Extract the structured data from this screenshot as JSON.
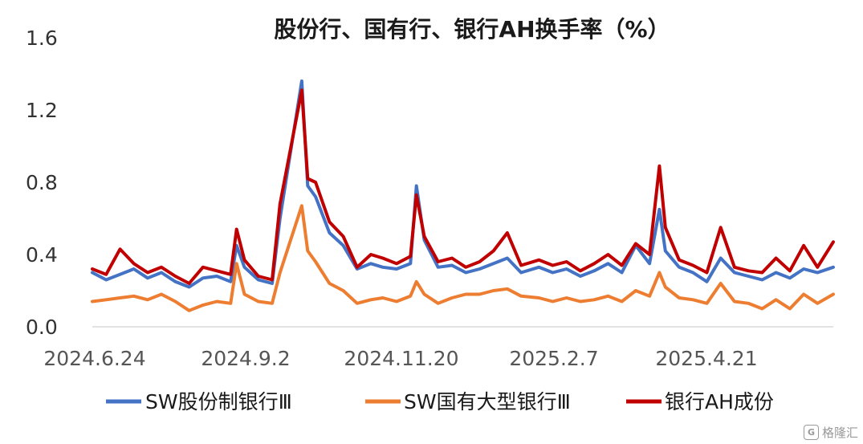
{
  "chart_data": {
    "type": "line",
    "title": "股份行、国有行、银行AH换手率（%）",
    "xlabel": "",
    "ylabel": "",
    "ylim": [
      0,
      1.6
    ],
    "yticks": [
      "0.0",
      "0.4",
      "0.8",
      "1.2",
      "1.6"
    ],
    "xticks": [
      "2024.6.24",
      "2024.9.2",
      "2024.11.20",
      "2025.2.7",
      "2025.4.21"
    ],
    "x_range": [
      "2024-06-24",
      "2025-07-04"
    ],
    "grid": false,
    "legend_position": "bottom",
    "series": [
      {
        "name": "SW股份制银行Ⅲ",
        "color": "#4472C4",
        "points": [
          [
            "2024-06-24",
            0.3
          ],
          [
            "2024-07-01",
            0.26
          ],
          [
            "2024-07-08",
            0.29
          ],
          [
            "2024-07-15",
            0.32
          ],
          [
            "2024-07-22",
            0.27
          ],
          [
            "2024-07-29",
            0.3
          ],
          [
            "2024-08-05",
            0.25
          ],
          [
            "2024-08-12",
            0.22
          ],
          [
            "2024-08-19",
            0.27
          ],
          [
            "2024-08-26",
            0.28
          ],
          [
            "2024-09-02",
            0.25
          ],
          [
            "2024-09-05",
            0.45
          ],
          [
            "2024-09-09",
            0.33
          ],
          [
            "2024-09-16",
            0.26
          ],
          [
            "2024-09-23",
            0.24
          ],
          [
            "2024-09-27",
            0.6
          ],
          [
            "2024-10-08",
            1.36
          ],
          [
            "2024-10-11",
            0.78
          ],
          [
            "2024-10-15",
            0.72
          ],
          [
            "2024-10-22",
            0.52
          ],
          [
            "2024-10-29",
            0.45
          ],
          [
            "2024-11-05",
            0.32
          ],
          [
            "2024-11-12",
            0.35
          ],
          [
            "2024-11-18",
            0.33
          ],
          [
            "2024-11-25",
            0.32
          ],
          [
            "2024-12-02",
            0.35
          ],
          [
            "2024-12-05",
            0.78
          ],
          [
            "2024-12-09",
            0.48
          ],
          [
            "2024-12-16",
            0.33
          ],
          [
            "2024-12-23",
            0.34
          ],
          [
            "2024-12-30",
            0.3
          ],
          [
            "2025-01-06",
            0.32
          ],
          [
            "2025-01-13",
            0.35
          ],
          [
            "2025-01-20",
            0.38
          ],
          [
            "2025-01-27",
            0.3
          ],
          [
            "2025-02-05",
            0.33
          ],
          [
            "2025-02-12",
            0.3
          ],
          [
            "2025-02-19",
            0.32
          ],
          [
            "2025-02-26",
            0.28
          ],
          [
            "2025-03-05",
            0.31
          ],
          [
            "2025-03-12",
            0.35
          ],
          [
            "2025-03-19",
            0.3
          ],
          [
            "2025-03-26",
            0.45
          ],
          [
            "2025-04-02",
            0.35
          ],
          [
            "2025-04-07",
            0.65
          ],
          [
            "2025-04-10",
            0.42
          ],
          [
            "2025-04-17",
            0.33
          ],
          [
            "2025-04-24",
            0.3
          ],
          [
            "2025-05-01",
            0.25
          ],
          [
            "2025-05-08",
            0.38
          ],
          [
            "2025-05-15",
            0.3
          ],
          [
            "2025-05-22",
            0.28
          ],
          [
            "2025-05-29",
            0.26
          ],
          [
            "2025-06-05",
            0.3
          ],
          [
            "2025-06-12",
            0.27
          ],
          [
            "2025-06-19",
            0.32
          ],
          [
            "2025-06-26",
            0.3
          ],
          [
            "2025-07-04",
            0.33
          ]
        ]
      },
      {
        "name": "SW国有大型银行Ⅲ",
        "color": "#ED7D31",
        "points": [
          [
            "2024-06-24",
            0.14
          ],
          [
            "2024-07-01",
            0.15
          ],
          [
            "2024-07-08",
            0.16
          ],
          [
            "2024-07-15",
            0.17
          ],
          [
            "2024-07-22",
            0.15
          ],
          [
            "2024-07-29",
            0.18
          ],
          [
            "2024-08-05",
            0.14
          ],
          [
            "2024-08-12",
            0.09
          ],
          [
            "2024-08-19",
            0.12
          ],
          [
            "2024-08-26",
            0.14
          ],
          [
            "2024-09-02",
            0.13
          ],
          [
            "2024-09-05",
            0.35
          ],
          [
            "2024-09-09",
            0.18
          ],
          [
            "2024-09-16",
            0.14
          ],
          [
            "2024-09-23",
            0.13
          ],
          [
            "2024-09-27",
            0.3
          ],
          [
            "2024-10-08",
            0.67
          ],
          [
            "2024-10-11",
            0.42
          ],
          [
            "2024-10-15",
            0.36
          ],
          [
            "2024-10-22",
            0.24
          ],
          [
            "2024-10-29",
            0.2
          ],
          [
            "2024-11-05",
            0.13
          ],
          [
            "2024-11-12",
            0.15
          ],
          [
            "2024-11-18",
            0.16
          ],
          [
            "2024-11-25",
            0.14
          ],
          [
            "2024-12-02",
            0.17
          ],
          [
            "2024-12-05",
            0.25
          ],
          [
            "2024-12-09",
            0.18
          ],
          [
            "2024-12-16",
            0.13
          ],
          [
            "2024-12-23",
            0.16
          ],
          [
            "2024-12-30",
            0.18
          ],
          [
            "2025-01-06",
            0.18
          ],
          [
            "2025-01-13",
            0.2
          ],
          [
            "2025-01-20",
            0.21
          ],
          [
            "2025-01-27",
            0.17
          ],
          [
            "2025-02-05",
            0.16
          ],
          [
            "2025-02-12",
            0.14
          ],
          [
            "2025-02-19",
            0.16
          ],
          [
            "2025-02-26",
            0.14
          ],
          [
            "2025-03-05",
            0.15
          ],
          [
            "2025-03-12",
            0.17
          ],
          [
            "2025-03-19",
            0.14
          ],
          [
            "2025-03-26",
            0.2
          ],
          [
            "2025-04-02",
            0.17
          ],
          [
            "2025-04-07",
            0.3
          ],
          [
            "2025-04-10",
            0.22
          ],
          [
            "2025-04-17",
            0.16
          ],
          [
            "2025-04-24",
            0.15
          ],
          [
            "2025-05-01",
            0.13
          ],
          [
            "2025-05-08",
            0.24
          ],
          [
            "2025-05-15",
            0.14
          ],
          [
            "2025-05-22",
            0.13
          ],
          [
            "2025-05-29",
            0.1
          ],
          [
            "2025-06-05",
            0.15
          ],
          [
            "2025-06-12",
            0.1
          ],
          [
            "2025-06-19",
            0.18
          ],
          [
            "2025-06-26",
            0.13
          ],
          [
            "2025-07-04",
            0.18
          ]
        ]
      },
      {
        "name": "银行AH成份",
        "color": "#C00000",
        "points": [
          [
            "2024-06-24",
            0.32
          ],
          [
            "2024-07-01",
            0.29
          ],
          [
            "2024-07-08",
            0.43
          ],
          [
            "2024-07-15",
            0.35
          ],
          [
            "2024-07-22",
            0.3
          ],
          [
            "2024-07-29",
            0.33
          ],
          [
            "2024-08-05",
            0.28
          ],
          [
            "2024-08-12",
            0.24
          ],
          [
            "2024-08-19",
            0.33
          ],
          [
            "2024-08-26",
            0.31
          ],
          [
            "2024-09-02",
            0.29
          ],
          [
            "2024-09-05",
            0.54
          ],
          [
            "2024-09-09",
            0.37
          ],
          [
            "2024-09-16",
            0.28
          ],
          [
            "2024-09-23",
            0.26
          ],
          [
            "2024-09-27",
            0.68
          ],
          [
            "2024-10-08",
            1.31
          ],
          [
            "2024-10-11",
            0.82
          ],
          [
            "2024-10-15",
            0.8
          ],
          [
            "2024-10-22",
            0.58
          ],
          [
            "2024-10-29",
            0.5
          ],
          [
            "2024-11-05",
            0.33
          ],
          [
            "2024-11-12",
            0.4
          ],
          [
            "2024-11-18",
            0.38
          ],
          [
            "2024-11-25",
            0.35
          ],
          [
            "2024-12-02",
            0.39
          ],
          [
            "2024-12-05",
            0.73
          ],
          [
            "2024-12-09",
            0.5
          ],
          [
            "2024-12-16",
            0.36
          ],
          [
            "2024-12-23",
            0.38
          ],
          [
            "2024-12-30",
            0.33
          ],
          [
            "2025-01-06",
            0.36
          ],
          [
            "2025-01-13",
            0.42
          ],
          [
            "2025-01-20",
            0.52
          ],
          [
            "2025-01-27",
            0.34
          ],
          [
            "2025-02-05",
            0.37
          ],
          [
            "2025-02-12",
            0.34
          ],
          [
            "2025-02-19",
            0.36
          ],
          [
            "2025-02-26",
            0.31
          ],
          [
            "2025-03-05",
            0.35
          ],
          [
            "2025-03-12",
            0.4
          ],
          [
            "2025-03-19",
            0.34
          ],
          [
            "2025-03-26",
            0.46
          ],
          [
            "2025-04-02",
            0.4
          ],
          [
            "2025-04-07",
            0.89
          ],
          [
            "2025-04-10",
            0.55
          ],
          [
            "2025-04-17",
            0.37
          ],
          [
            "2025-04-24",
            0.34
          ],
          [
            "2025-05-01",
            0.3
          ],
          [
            "2025-05-08",
            0.55
          ],
          [
            "2025-05-15",
            0.33
          ],
          [
            "2025-05-22",
            0.31
          ],
          [
            "2025-05-29",
            0.3
          ],
          [
            "2025-06-05",
            0.38
          ],
          [
            "2025-06-12",
            0.31
          ],
          [
            "2025-06-19",
            0.45
          ],
          [
            "2025-06-26",
            0.33
          ],
          [
            "2025-07-04",
            0.47
          ]
        ]
      }
    ]
  },
  "watermark": {
    "label": "格隆汇",
    "mark": "G"
  }
}
